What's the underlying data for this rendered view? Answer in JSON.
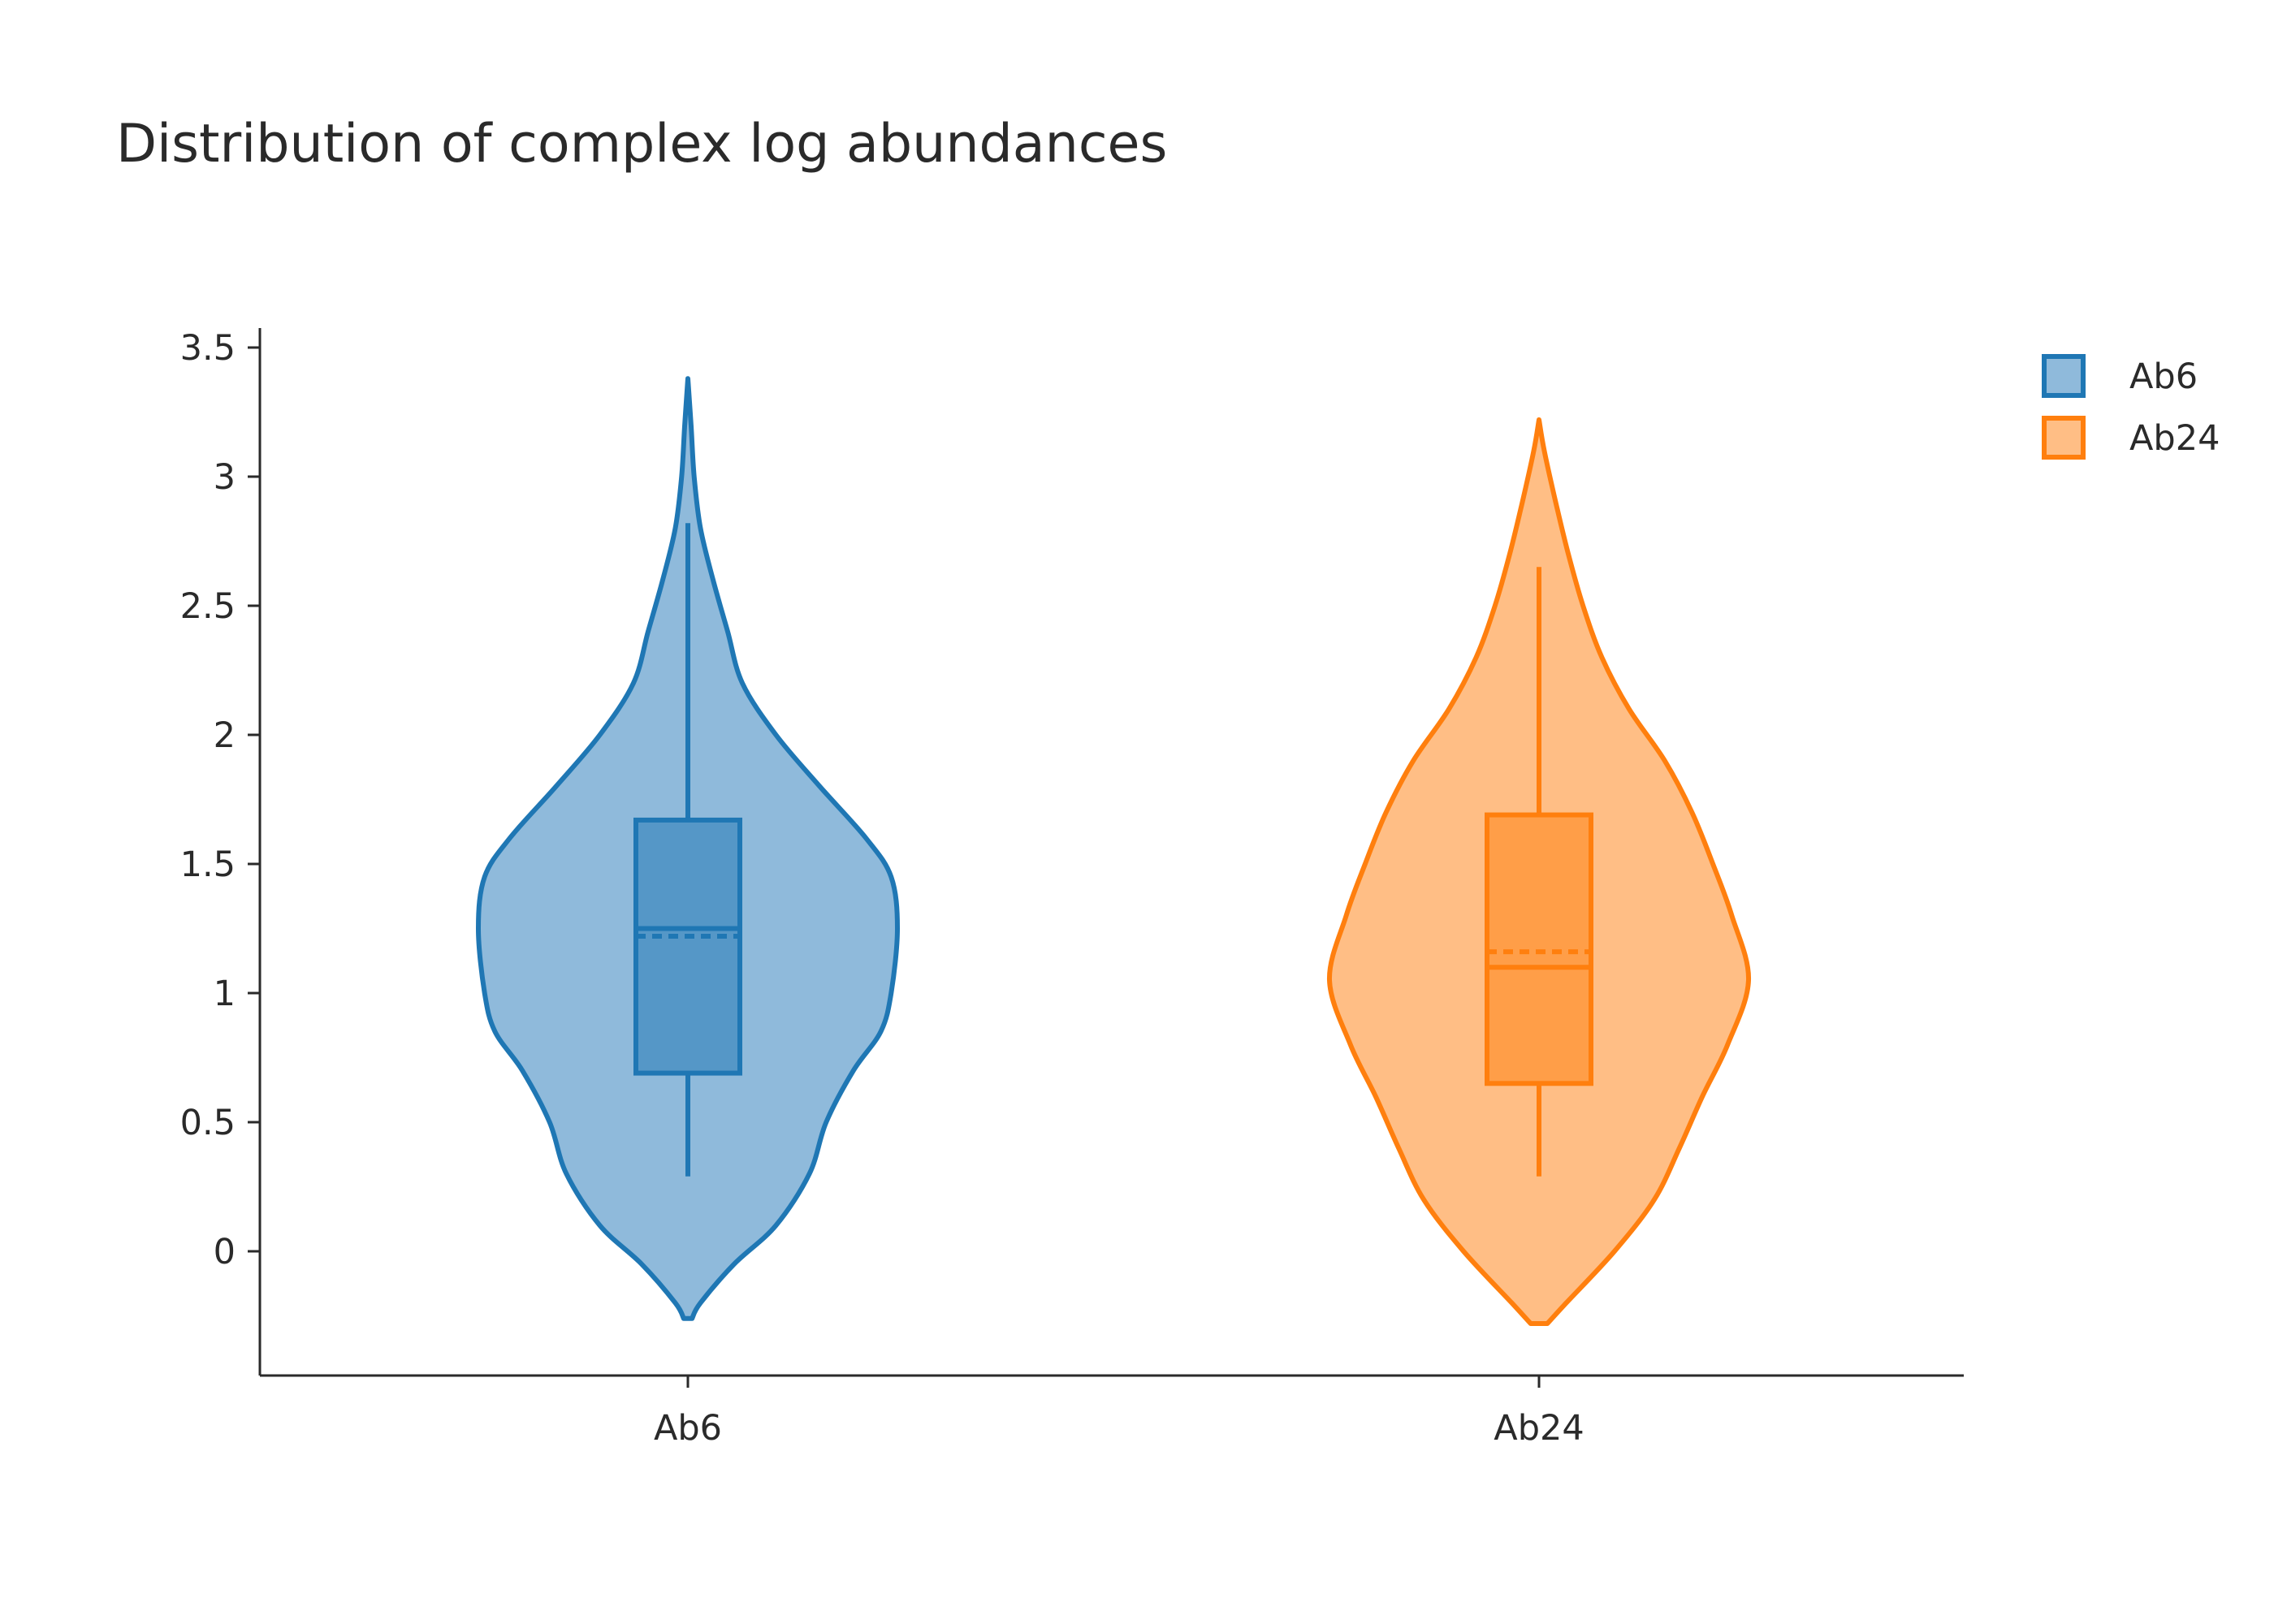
{
  "chart_data": {
    "type": "violin",
    "title": "Distribution of complex log abundances",
    "xlabel": "",
    "ylabel": "",
    "categories": [
      "Ab6",
      "Ab24"
    ],
    "ylim": [
      -0.48,
      3.58
    ],
    "yticks": [
      {
        "value": 0,
        "label": "0"
      },
      {
        "value": 0.5,
        "label": "0.5"
      },
      {
        "value": 1,
        "label": "1"
      },
      {
        "value": 1.5,
        "label": "1.5"
      },
      {
        "value": 2,
        "label": "2"
      },
      {
        "value": 2.5,
        "label": "2.5"
      },
      {
        "value": 3,
        "label": "3"
      },
      {
        "value": 3.5,
        "label": "3.5"
      }
    ],
    "grid": false,
    "legend_position": "top-right",
    "series": [
      {
        "name": "Ab6",
        "line_color": "#1f77b4",
        "fill_color": "#8fbadb",
        "box_fill_color": "#5597c7",
        "box": {
          "min": 0.29,
          "q1": 0.69,
          "median": 1.25,
          "mean": 1.22,
          "q3": 1.67,
          "max": 2.82
        },
        "violin_range": [
          -0.26,
          3.38
        ],
        "density": [
          [
            -0.26,
            0.02
          ],
          [
            -0.2,
            0.06
          ],
          [
            -0.05,
            0.22
          ],
          [
            0.1,
            0.42
          ],
          [
            0.3,
            0.58
          ],
          [
            0.5,
            0.66
          ],
          [
            0.7,
            0.79
          ],
          [
            0.85,
            0.92
          ],
          [
            1.0,
            0.97
          ],
          [
            1.25,
            1.0
          ],
          [
            1.45,
            0.97
          ],
          [
            1.6,
            0.85
          ],
          [
            1.8,
            0.63
          ],
          [
            2.0,
            0.42
          ],
          [
            2.2,
            0.26
          ],
          [
            2.4,
            0.19
          ],
          [
            2.6,
            0.12
          ],
          [
            2.8,
            0.06
          ],
          [
            3.0,
            0.03
          ],
          [
            3.2,
            0.015
          ],
          [
            3.38,
            0.0
          ]
        ]
      },
      {
        "name": "Ab24",
        "line_color": "#ff7f0e",
        "fill_color": "#ffbe85",
        "box_fill_color": "#ff9e48",
        "box": {
          "min": 0.29,
          "q1": 0.65,
          "median": 1.1,
          "mean": 1.16,
          "q3": 1.69,
          "max": 2.65
        },
        "violin_range": [
          -0.28,
          3.22
        ],
        "density": [
          [
            -0.28,
            0.04
          ],
          [
            -0.2,
            0.13
          ],
          [
            0.0,
            0.36
          ],
          [
            0.2,
            0.55
          ],
          [
            0.4,
            0.67
          ],
          [
            0.6,
            0.78
          ],
          [
            0.8,
            0.9
          ],
          [
            1.05,
            1.0
          ],
          [
            1.3,
            0.92
          ],
          [
            1.5,
            0.83
          ],
          [
            1.7,
            0.73
          ],
          [
            1.9,
            0.6
          ],
          [
            2.1,
            0.43
          ],
          [
            2.3,
            0.3
          ],
          [
            2.5,
            0.21
          ],
          [
            2.7,
            0.14
          ],
          [
            2.9,
            0.08
          ],
          [
            3.1,
            0.025
          ],
          [
            3.22,
            0.0
          ]
        ]
      }
    ]
  }
}
